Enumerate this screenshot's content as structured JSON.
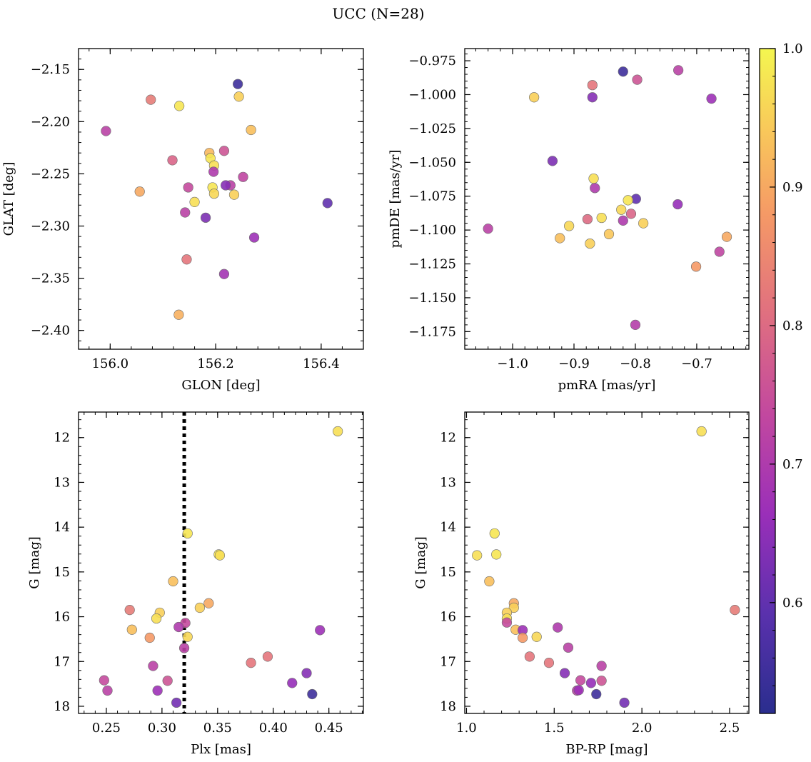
{
  "figure": {
    "title": "UCC (N=28)"
  },
  "colorbar": {
    "min": 0.52,
    "max": 1.0,
    "ticks": [
      0.6,
      0.7,
      0.8,
      0.9,
      1.0
    ]
  },
  "chart_data": [
    {
      "type": "scatter",
      "xlabel": "GLON [deg]",
      "ylabel": "GLAT [deg]",
      "xlim": [
        155.94,
        156.48
      ],
      "ylim": [
        -2.418,
        -2.13
      ],
      "xticks": [
        156.0,
        156.2,
        156.4
      ],
      "yticks": [
        -2.15,
        -2.2,
        -2.25,
        -2.3,
        -2.35,
        -2.4
      ],
      "x": [
        156.242,
        156.244,
        156.131,
        156.077,
        155.992,
        156.267,
        156.216,
        156.118,
        156.188,
        156.19,
        156.197,
        156.196,
        156.252,
        156.056,
        156.228,
        156.219,
        156.148,
        156.194,
        156.197,
        156.235,
        156.16,
        156.142,
        156.181,
        156.412,
        156.273,
        156.145,
        156.216,
        156.13
      ],
      "y": [
        -2.164,
        -2.176,
        -2.185,
        -2.179,
        -2.209,
        -2.208,
        -2.228,
        -2.237,
        -2.23,
        -2.235,
        -2.242,
        -2.248,
        -2.253,
        -2.267,
        -2.261,
        -2.261,
        -2.263,
        -2.263,
        -2.269,
        -2.27,
        -2.277,
        -2.287,
        -2.292,
        -2.278,
        -2.311,
        -2.332,
        -2.346,
        -2.385
      ],
      "c": [
        0.55,
        0.95,
        0.98,
        0.83,
        0.72,
        0.93,
        0.76,
        0.79,
        0.92,
        0.98,
        0.97,
        0.7,
        0.73,
        0.9,
        0.72,
        0.64,
        0.74,
        0.98,
        0.96,
        0.95,
        0.97,
        0.72,
        0.63,
        0.6,
        0.67,
        0.82,
        0.68,
        0.91
      ]
    },
    {
      "type": "scatter",
      "xlabel": "pmRA [mas/yr]",
      "ylabel": "pmDE [mas/yr]",
      "xlim": [
        -1.078,
        -0.615
      ],
      "ylim": [
        -1.188,
        -0.966
      ],
      "xticks": [
        -1.0,
        -0.9,
        -0.8,
        -0.7
      ],
      "yticks": [
        -0.975,
        -1.0,
        -1.025,
        -1.05,
        -1.075,
        -1.1,
        -1.125,
        -1.15,
        -1.175
      ],
      "x": [
        -0.82,
        -0.73,
        -0.87,
        -0.797,
        -0.965,
        -0.87,
        -0.676,
        -0.935,
        -0.868,
        -0.866,
        -0.799,
        -0.812,
        -0.731,
        -0.823,
        -0.807,
        -0.855,
        -0.878,
        -0.82,
        -0.787,
        -0.908,
        -0.843,
        -1.04,
        -0.923,
        -0.874,
        -0.651,
        -0.663,
        -0.701,
        -0.8
      ],
      "y": [
        -0.983,
        -0.982,
        -0.993,
        -0.989,
        -1.002,
        -1.002,
        -1.003,
        -1.049,
        -1.062,
        -1.069,
        -1.077,
        -1.078,
        -1.081,
        -1.085,
        -1.088,
        -1.091,
        -1.092,
        -1.093,
        -1.095,
        -1.097,
        -1.103,
        -1.099,
        -1.106,
        -1.11,
        -1.105,
        -1.116,
        -1.127,
        -1.17
      ],
      "c": [
        0.55,
        0.72,
        0.82,
        0.76,
        0.95,
        0.64,
        0.67,
        0.63,
        0.97,
        0.7,
        0.6,
        0.98,
        0.66,
        0.96,
        0.79,
        0.97,
        0.8,
        0.7,
        0.95,
        0.96,
        0.94,
        0.72,
        0.93,
        0.95,
        0.9,
        0.73,
        0.88,
        0.71
      ]
    },
    {
      "type": "scatter",
      "xlabel": "Plx [mas]",
      "ylabel": "G [mag]",
      "xlim": [
        0.225,
        0.481
      ],
      "ylim": [
        18.16,
        11.43
      ],
      "xticks": [
        0.25,
        0.3,
        0.35,
        0.4,
        0.45
      ],
      "yticks": [
        12,
        13,
        14,
        15,
        16,
        17,
        18
      ],
      "vline": 0.32,
      "x": [
        0.458,
        0.323,
        0.351,
        0.352,
        0.31,
        0.342,
        0.334,
        0.271,
        0.298,
        0.295,
        0.321,
        0.273,
        0.315,
        0.442,
        0.323,
        0.289,
        0.32,
        0.395,
        0.38,
        0.292,
        0.43,
        0.248,
        0.305,
        0.417,
        0.251,
        0.296,
        0.435,
        0.313
      ],
      "y": [
        11.86,
        14.14,
        14.61,
        14.63,
        15.21,
        15.7,
        15.8,
        15.85,
        15.91,
        16.04,
        16.14,
        16.29,
        16.23,
        16.3,
        16.45,
        16.47,
        16.7,
        16.89,
        17.03,
        17.1,
        17.26,
        17.42,
        17.43,
        17.48,
        17.65,
        17.65,
        17.73,
        17.92
      ],
      "c": [
        0.97,
        0.98,
        0.98,
        0.97,
        0.93,
        0.9,
        0.95,
        0.83,
        0.95,
        0.97,
        0.74,
        0.93,
        0.7,
        0.67,
        0.96,
        0.88,
        0.72,
        0.82,
        0.82,
        0.72,
        0.64,
        0.74,
        0.76,
        0.66,
        0.72,
        0.67,
        0.55,
        0.62
      ]
    },
    {
      "type": "scatter",
      "xlabel": "BP-RP [mag]",
      "ylabel": "G [mag]",
      "xlim": [
        0.99,
        2.61
      ],
      "ylim": [
        18.16,
        11.43
      ],
      "xticks": [
        1.0,
        1.5,
        2.0,
        2.5
      ],
      "yticks": [
        12,
        13,
        14,
        15,
        16,
        17,
        18
      ],
      "x": [
        2.34,
        1.16,
        1.06,
        1.17,
        1.13,
        1.27,
        1.27,
        1.23,
        1.23,
        1.23,
        1.28,
        1.32,
        1.52,
        1.32,
        1.4,
        1.58,
        1.36,
        1.47,
        1.56,
        1.77,
        1.65,
        1.77,
        1.71,
        1.63,
        1.64,
        1.74,
        1.9,
        2.53
      ],
      "y": [
        11.86,
        14.14,
        14.63,
        14.61,
        15.21,
        15.7,
        15.8,
        15.91,
        16.04,
        16.13,
        16.29,
        16.3,
        16.24,
        16.47,
        16.45,
        16.69,
        16.89,
        17.03,
        17.26,
        17.1,
        17.42,
        17.43,
        17.48,
        17.65,
        17.64,
        17.73,
        17.92,
        15.85
      ],
      "c": [
        0.97,
        0.98,
        0.97,
        0.98,
        0.93,
        0.9,
        0.95,
        0.95,
        0.97,
        0.74,
        0.93,
        0.67,
        0.7,
        0.88,
        0.96,
        0.72,
        0.82,
        0.82,
        0.64,
        0.72,
        0.74,
        0.76,
        0.66,
        0.72,
        0.67,
        0.55,
        0.62,
        0.83
      ]
    }
  ]
}
